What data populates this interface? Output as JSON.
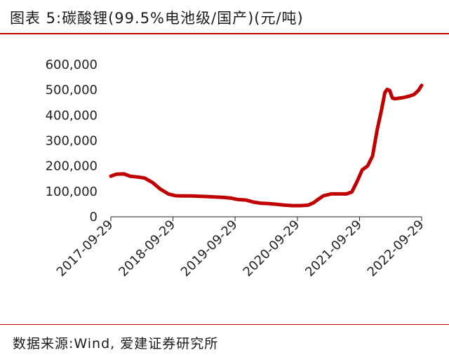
{
  "header": {
    "title": "图表 5:碳酸锂(99.5%电池级/国产)(元/吨)"
  },
  "footer": {
    "source": "数据来源:Wind, 爱建证券研究所"
  },
  "colors": {
    "accent": "#c00000",
    "series": "#c00000",
    "text": "#222222"
  },
  "chart_data": {
    "type": "line",
    "title": "图表 5:碳酸锂(99.5%电池级/国产)(元/吨)",
    "xlabel": "",
    "ylabel": "",
    "ylim": [
      0,
      600000
    ],
    "yticks": [
      0,
      100000,
      200000,
      300000,
      400000,
      500000,
      600000
    ],
    "ytick_labels": [
      "0",
      "100,000",
      "200,000",
      "300,000",
      "400,000",
      "500,000",
      "600,000"
    ],
    "xticks": [
      "2017-09-29",
      "2018-09-29",
      "2019-09-29",
      "2020-09-29",
      "2021-09-29",
      "2022-09-29"
    ],
    "grid": false,
    "legend": "none",
    "series": [
      {
        "x": [
          "2017-09-29",
          "2017-11-01",
          "2017-12-15",
          "2018-01-20",
          "2018-03-01",
          "2018-04-15",
          "2018-06-01",
          "2018-07-15",
          "2018-09-01",
          "2018-10-15",
          "2018-12-01",
          "2019-01-15",
          "2019-03-01",
          "2019-04-15",
          "2019-06-01",
          "2019-07-15",
          "2019-09-01",
          "2019-10-15",
          "2019-12-01",
          "2020-01-15",
          "2020-03-01",
          "2020-04-15",
          "2020-06-01",
          "2020-07-15",
          "2020-09-01",
          "2020-10-15",
          "2020-12-01",
          "2021-01-01",
          "2021-02-01",
          "2021-03-01",
          "2021-04-15",
          "2021-06-01",
          "2021-07-15",
          "2021-08-15",
          "2021-09-15",
          "2021-10-15",
          "2021-11-15",
          "2021-12-15",
          "2022-01-10",
          "2022-02-05",
          "2022-02-25",
          "2022-03-10",
          "2022-03-25",
          "2022-04-10",
          "2022-04-25",
          "2022-05-15",
          "2022-06-15",
          "2022-07-15",
          "2022-08-15",
          "2022-09-10",
          "2022-09-29"
        ],
        "y": [
          160000,
          168000,
          169000,
          160000,
          157000,
          153000,
          135000,
          110000,
          90000,
          83000,
          82000,
          82000,
          81000,
          80000,
          78000,
          77000,
          74000,
          68000,
          66000,
          58000,
          53000,
          52000,
          49000,
          46000,
          44000,
          44000,
          46000,
          55000,
          70000,
          83000,
          90000,
          90000,
          90000,
          98000,
          140000,
          185000,
          200000,
          240000,
          340000,
          420000,
          490000,
          502000,
          498000,
          468000,
          465000,
          467000,
          470000,
          475000,
          482000,
          498000,
          518000
        ]
      }
    ]
  }
}
